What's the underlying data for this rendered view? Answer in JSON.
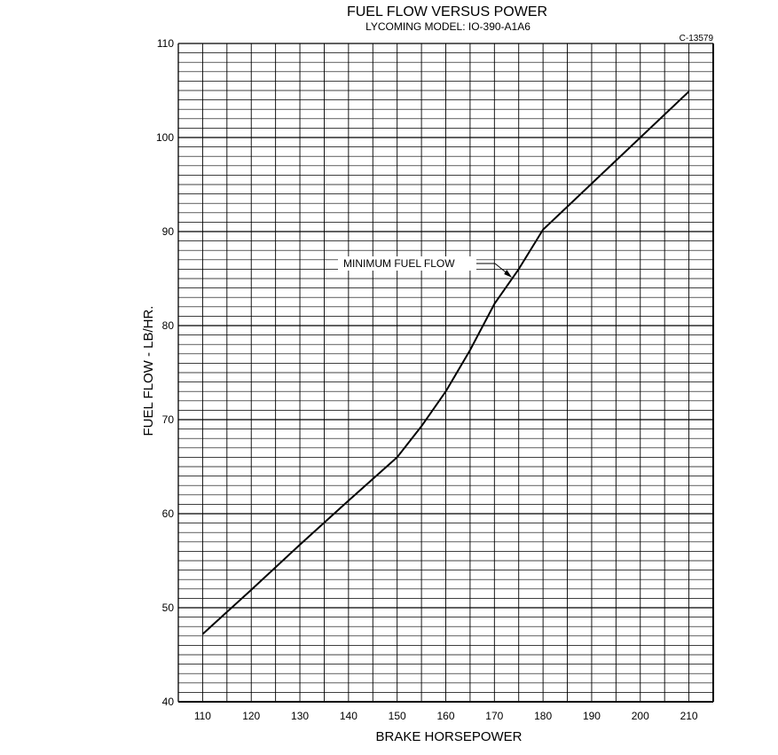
{
  "chart_data": {
    "type": "line",
    "title": "FUEL FLOW VERSUS POWER",
    "subtitle": "LYCOMING MODEL: IO-390-A1A6",
    "figure_code": "C-13579",
    "xlabel": "BRAKE HORSEPOWER",
    "ylabel": "FUEL FLOW - LB/HR.",
    "xlim": [
      105,
      215
    ],
    "ylim": [
      40,
      110
    ],
    "x_ticks": [
      110,
      120,
      130,
      140,
      150,
      160,
      170,
      180,
      190,
      200,
      210
    ],
    "y_ticks": [
      40,
      50,
      60,
      70,
      80,
      90,
      100,
      110
    ],
    "grid": true,
    "series": [
      {
        "name": "MINIMUM FUEL FLOW",
        "x": [
          110,
          120,
          130,
          140,
          150,
          155,
          160,
          165,
          170,
          175,
          180,
          190,
          200,
          210
        ],
        "y": [
          47.2,
          51.9,
          56.7,
          61.4,
          66.0,
          69.3,
          73.0,
          77.4,
          82.3,
          86.0,
          90.2,
          95.1,
          100.0,
          104.9
        ]
      }
    ],
    "annotations": [
      {
        "text": "MINIMUM FUEL FLOW",
        "x": 174,
        "y": 85
      }
    ]
  }
}
